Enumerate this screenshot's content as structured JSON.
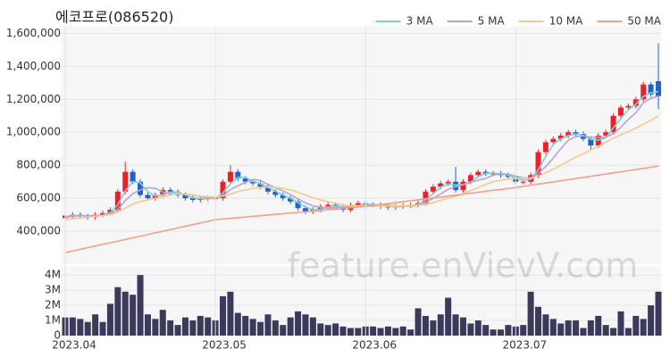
{
  "watermark": "feature.enVievV.com",
  "chart_data": [
    {
      "type": "candlestick",
      "title": "에코프로(086520)",
      "open": [
        480000,
        495000,
        500000,
        490000,
        485000,
        500000,
        510000,
        530000,
        640000,
        760000,
        700000,
        620000,
        600000,
        620000,
        650000,
        640000,
        620000,
        600000,
        590000,
        600000,
        600000,
        600000,
        700000,
        760000,
        720000,
        700000,
        690000,
        670000,
        640000,
        620000,
        600000,
        580000,
        540000,
        520000,
        530000,
        550000,
        560000,
        550000,
        530000,
        560000,
        570000,
        560000,
        560000,
        550000,
        545000,
        550000,
        555000,
        560000,
        570000,
        640000,
        670000,
        690000,
        700000,
        650000,
        700000,
        740000,
        760000,
        750000,
        750000,
        740000,
        730000,
        700000,
        700000,
        740000,
        880000,
        940000,
        960000,
        980000,
        1000000,
        990000,
        960000,
        920000,
        980000,
        1000000,
        1100000,
        1150000,
        1160000,
        1200000,
        1290000,
        1310000
      ],
      "high": [
        510000,
        515000,
        515000,
        505000,
        515000,
        525000,
        545000,
        655000,
        820000,
        775000,
        715000,
        635000,
        635000,
        665000,
        665000,
        655000,
        635000,
        615000,
        615000,
        615000,
        615000,
        715000,
        800000,
        775000,
        735000,
        715000,
        705000,
        685000,
        655000,
        635000,
        615000,
        595000,
        555000,
        545000,
        565000,
        575000,
        575000,
        565000,
        575000,
        585000,
        585000,
        575000,
        575000,
        565000,
        565000,
        570000,
        575000,
        585000,
        655000,
        685000,
        705000,
        715000,
        790000,
        715000,
        755000,
        775000,
        775000,
        765000,
        765000,
        755000,
        745000,
        715000,
        755000,
        895000,
        955000,
        975000,
        995000,
        1015000,
        1015000,
        1005000,
        975000,
        995000,
        1015000,
        1115000,
        1165000,
        1175000,
        1215000,
        1305000,
        1305000,
        1540000
      ],
      "low": [
        465000,
        480000,
        475000,
        470000,
        470000,
        485000,
        495000,
        515000,
        625000,
        685000,
        605000,
        585000,
        585000,
        605000,
        625000,
        605000,
        585000,
        575000,
        575000,
        585000,
        585000,
        585000,
        685000,
        705000,
        685000,
        675000,
        655000,
        625000,
        605000,
        585000,
        565000,
        525000,
        505000,
        505000,
        515000,
        535000,
        535000,
        515000,
        515000,
        545000,
        545000,
        545000,
        535000,
        530000,
        530000,
        535000,
        540000,
        545000,
        555000,
        625000,
        655000,
        675000,
        635000,
        635000,
        685000,
        725000,
        735000,
        735000,
        725000,
        715000,
        685000,
        685000,
        685000,
        725000,
        865000,
        925000,
        945000,
        965000,
        975000,
        945000,
        895000,
        905000,
        965000,
        985000,
        1085000,
        1135000,
        1145000,
        1185000,
        1215000,
        1140000
      ],
      "close": [
        495000,
        500000,
        490000,
        485000,
        500000,
        510000,
        530000,
        640000,
        760000,
        700000,
        620000,
        600000,
        620000,
        650000,
        640000,
        620000,
        600000,
        590000,
        600000,
        600000,
        600000,
        700000,
        760000,
        720000,
        700000,
        690000,
        670000,
        640000,
        620000,
        600000,
        580000,
        540000,
        520000,
        530000,
        550000,
        560000,
        550000,
        530000,
        560000,
        570000,
        560000,
        560000,
        550000,
        545000,
        550000,
        555000,
        560000,
        570000,
        640000,
        670000,
        690000,
        700000,
        650000,
        700000,
        740000,
        760000,
        750000,
        750000,
        740000,
        730000,
        700000,
        700000,
        740000,
        880000,
        940000,
        960000,
        980000,
        1000000,
        990000,
        960000,
        920000,
        980000,
        1000000,
        1100000,
        1150000,
        1160000,
        1200000,
        1290000,
        1230000,
        1220000
      ],
      "up_color": "#e8212b",
      "down_color": "#1e64c8",
      "series": [
        {
          "name": "3 MA",
          "color": "#7fcfd2",
          "values": [
            490000,
            495000,
            495000,
            492000,
            492000,
            498000,
            513000,
            560000,
            643000,
            700000,
            693000,
            640000,
            613000,
            623000,
            637000,
            637000,
            620000,
            603000,
            597000,
            597000,
            600000,
            633000,
            687000,
            727000,
            727000,
            703000,
            687000,
            667000,
            643000,
            620000,
            600000,
            573000,
            547000,
            530000,
            533000,
            547000,
            553000,
            547000,
            547000,
            553000,
            563000,
            563000,
            557000,
            552000,
            548000,
            550000,
            555000,
            562000,
            590000,
            627000,
            667000,
            687000,
            680000,
            683000,
            697000,
            733000,
            750000,
            753000,
            747000,
            740000,
            723000,
            710000,
            713000,
            773000,
            853000,
            927000,
            960000,
            980000,
            990000,
            983000,
            957000,
            953000,
            967000,
            1027000,
            1083000,
            1137000,
            1170000,
            1217000,
            1240000,
            1247000
          ]
        },
        {
          "name": "5 MA",
          "color": "#b7a3d6",
          "values": [
            485000,
            490000,
            493000,
            494000,
            494000,
            497000,
            503000,
            533000,
            586000,
            628000,
            650000,
            664000,
            660000,
            638000,
            626000,
            626000,
            626000,
            620000,
            610000,
            602000,
            598000,
            618000,
            652000,
            676000,
            696000,
            714000,
            708000,
            684000,
            664000,
            644000,
            622000,
            596000,
            572000,
            554000,
            544000,
            540000,
            542000,
            544000,
            550000,
            554000,
            554000,
            556000,
            558000,
            557000,
            553000,
            552000,
            552000,
            556000,
            575000,
            599000,
            627000,
            654000,
            670000,
            682000,
            696000,
            710000,
            720000,
            740000,
            748000,
            746000,
            734000,
            724000,
            722000,
            750000,
            792000,
            844000,
            900000,
            952000,
            974000,
            978000,
            970000,
            970000,
            970000,
            992000,
            1030000,
            1078000,
            1118000,
            1180000,
            1206000,
            1220000
          ]
        },
        {
          "name": "10 MA",
          "color": "#f3c98f",
          "values": [
            470000,
            475000,
            480000,
            485000,
            490000,
            494000,
            500000,
            515000,
            540000,
            565000,
            580000,
            590000,
            600000,
            610000,
            620000,
            630000,
            625000,
            620000,
            612000,
            610000,
            608000,
            612000,
            625000,
            640000,
            650000,
            660000,
            665000,
            668000,
            666000,
            660000,
            650000,
            636000,
            620000,
            604000,
            590000,
            578000,
            568000,
            560000,
            555000,
            552000,
            552000,
            552000,
            553000,
            553000,
            553000,
            554000,
            555000,
            557000,
            563000,
            574000,
            587000,
            601000,
            612000,
            628000,
            646000,
            665000,
            683000,
            700000,
            710000,
            716000,
            720000,
            722000,
            722000,
            735000,
            755000,
            776000,
            800000,
            825000,
            850000,
            870000,
            892000,
            915000,
            940000,
            965000,
            985000,
            1005000,
            1025000,
            1050000,
            1072000,
            1100000
          ]
        },
        {
          "name": "50 MA",
          "color": "#f2a08a",
          "values": [
            270000,
            280000,
            290000,
            300000,
            310000,
            320000,
            330000,
            340000,
            350000,
            360000,
            370000,
            380000,
            390000,
            400000,
            410000,
            420000,
            430000,
            440000,
            450000,
            460000,
            470000,
            474000,
            478000,
            482000,
            486000,
            490000,
            494000,
            498000,
            502000,
            506000,
            510000,
            514000,
            518000,
            522000,
            526000,
            530000,
            534000,
            538000,
            542000,
            546000,
            550000,
            556000,
            561000,
            567000,
            573000,
            579000,
            585000,
            590000,
            596000,
            602000,
            607000,
            613000,
            619000,
            625000,
            630000,
            636000,
            642000,
            648000,
            653000,
            659000,
            665000,
            672000,
            679000,
            686000,
            692000,
            699000,
            706000,
            713000,
            720000,
            726000,
            733000,
            740000,
            747000,
            754000,
            760000,
            767000,
            774000,
            781000,
            788000,
            795000
          ]
        }
      ],
      "legend": "top-right",
      "grid": true,
      "ylim": [
        200000,
        1640000
      ],
      "yticks": [
        {
          "value": 400000,
          "label": "400,000"
        },
        {
          "value": 600000,
          "label": "600,000"
        },
        {
          "value": 800000,
          "label": "800,000"
        },
        {
          "value": 1000000,
          "label": "1,000,000"
        },
        {
          "value": 1200000,
          "label": "1,200,000"
        },
        {
          "value": 1400000,
          "label": "1,400,000"
        },
        {
          "value": 1600000,
          "label": "1,600,000"
        }
      ]
    },
    {
      "type": "bar",
      "color": "#3b3a5c",
      "categories": [
        "2023.04",
        null,
        null,
        null,
        null,
        null,
        null,
        null,
        null,
        null,
        null,
        null,
        null,
        null,
        null,
        null,
        null,
        null,
        null,
        null,
        "2023.05",
        null,
        null,
        null,
        null,
        null,
        null,
        null,
        null,
        null,
        null,
        null,
        null,
        null,
        null,
        null,
        null,
        null,
        null,
        null,
        "2023.06",
        null,
        null,
        null,
        null,
        null,
        null,
        null,
        null,
        null,
        null,
        null,
        null,
        null,
        null,
        null,
        null,
        null,
        null,
        null,
        "2023.07",
        null,
        null,
        null,
        null,
        null,
        null,
        null,
        null,
        null,
        null,
        null,
        null,
        null,
        null,
        null,
        null,
        null,
        null,
        null
      ],
      "values": [
        1200000,
        1200000,
        1100000,
        900000,
        1400000,
        900000,
        2100000,
        3200000,
        2900000,
        2700000,
        4000000,
        1400000,
        1100000,
        1700000,
        1000000,
        700000,
        1200000,
        1000000,
        1300000,
        1200000,
        1000000,
        2600000,
        2900000,
        1500000,
        1300000,
        1100000,
        900000,
        1400000,
        1000000,
        700000,
        1200000,
        1600000,
        1400000,
        1200000,
        800000,
        700000,
        800000,
        600000,
        500000,
        500000,
        600000,
        600000,
        500000,
        600000,
        500000,
        600000,
        400000,
        1800000,
        1300000,
        1000000,
        1400000,
        2500000,
        1400000,
        1200000,
        800000,
        1000000,
        700000,
        400000,
        400000,
        700000,
        600000,
        700000,
        2900000,
        1900000,
        1400000,
        1100000,
        800000,
        1000000,
        1000000,
        500000,
        1000000,
        1300000,
        700000,
        500000,
        1600000,
        500000,
        1300000,
        1100000,
        2000000,
        2900000
      ],
      "ylim": [
        0,
        4600000
      ],
      "yticks": [
        0,
        {
          "value": 1000000,
          "label": "1M"
        },
        {
          "value": 2000000,
          "label": "2M"
        },
        {
          "value": 3000000,
          "label": "3M"
        },
        {
          "value": 4000000,
          "label": "4M"
        }
      ]
    }
  ]
}
